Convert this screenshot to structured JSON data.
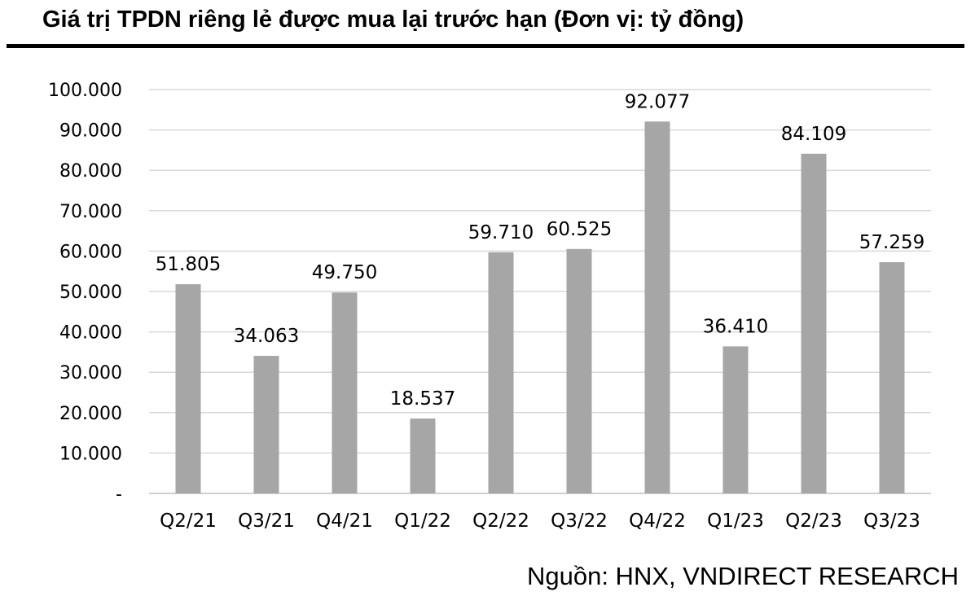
{
  "chart_data": {
    "type": "bar",
    "title": "Giá trị TPDN riêng lẻ được mua lại trước hạn (Đơn vị: tỷ đồng)",
    "categories": [
      "Q2/21",
      "Q3/21",
      "Q4/21",
      "Q1/22",
      "Q2/22",
      "Q3/22",
      "Q4/22",
      "Q1/23",
      "Q2/23",
      "Q3/23"
    ],
    "values": [
      51805,
      34063,
      49750,
      18537,
      59710,
      60525,
      92077,
      36410,
      84109,
      57259
    ],
    "value_labels": [
      "51.805",
      "34.063",
      "49.750",
      "18.537",
      "59.710",
      "60.525",
      "92.077",
      "36.410",
      "84.109",
      "57.259"
    ],
    "ylim": [
      0,
      100000
    ],
    "y_ticks": [
      0,
      10000,
      20000,
      30000,
      40000,
      50000,
      60000,
      70000,
      80000,
      90000,
      100000
    ],
    "y_tick_labels": [
      "-",
      "10.000",
      "20.000",
      "30.000",
      "40.000",
      "50.000",
      "60.000",
      "70.000",
      "80.000",
      "90.000",
      "100.000"
    ],
    "grid": true,
    "bar_color": "#a6a6a6",
    "grid_color": "#d9d9d9",
    "xlabel": "",
    "ylabel": ""
  },
  "source": "Nguồn: HNX, VNDIRECT RESEARCH"
}
